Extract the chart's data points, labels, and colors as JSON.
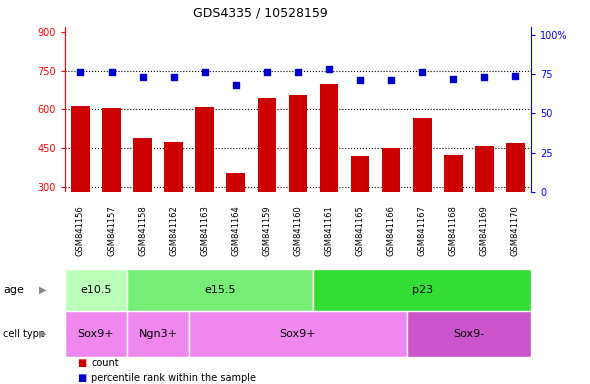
{
  "title": "GDS4335 / 10528159",
  "samples": [
    "GSM841156",
    "GSM841157",
    "GSM841158",
    "GSM841162",
    "GSM841163",
    "GSM841164",
    "GSM841159",
    "GSM841160",
    "GSM841161",
    "GSM841165",
    "GSM841166",
    "GSM841167",
    "GSM841168",
    "GSM841169",
    "GSM841170"
  ],
  "counts": [
    615,
    605,
    490,
    475,
    608,
    355,
    643,
    655,
    700,
    418,
    450,
    565,
    425,
    460,
    470
  ],
  "percentiles": [
    76,
    76,
    73,
    73,
    76,
    68,
    76,
    76,
    78,
    71,
    71,
    76,
    72,
    73,
    74
  ],
  "ylim_left": [
    280,
    920
  ],
  "ylim_right": [
    0,
    105
  ],
  "yticks_left": [
    300,
    450,
    600,
    750,
    900
  ],
  "yticks_right": [
    0,
    25,
    50,
    75,
    100
  ],
  "bar_color": "#cc0000",
  "dot_color": "#0000cc",
  "plot_bg": "#ffffff",
  "label_bg": "#d0d0d0",
  "age_groups": [
    {
      "label": "e10.5",
      "start": 0,
      "end": 2,
      "color": "#bbffbb"
    },
    {
      "label": "e15.5",
      "start": 2,
      "end": 8,
      "color": "#77ee77"
    },
    {
      "label": "p23",
      "start": 8,
      "end": 15,
      "color": "#33dd33"
    }
  ],
  "cell_groups": [
    {
      "label": "Sox9+",
      "start": 0,
      "end": 2,
      "color": "#ee88ee"
    },
    {
      "label": "Ngn3+",
      "start": 2,
      "end": 4,
      "color": "#ee88ee"
    },
    {
      "label": "Sox9+",
      "start": 4,
      "end": 11,
      "color": "#ee88ee"
    },
    {
      "label": "Sox9-",
      "start": 11,
      "end": 15,
      "color": "#cc55cc"
    }
  ],
  "age_label": "age",
  "cell_type_label": "cell type",
  "legend_count": "count",
  "legend_pct": "percentile rank within the sample",
  "n_samples": 15
}
